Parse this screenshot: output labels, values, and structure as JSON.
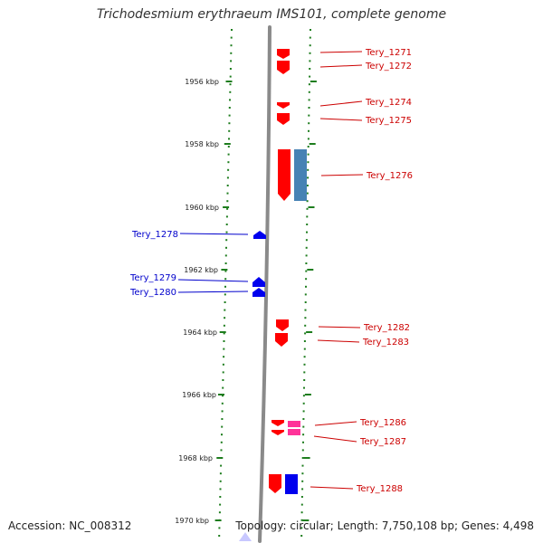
{
  "title": "Trichodesmium erythraeum IMS101, complete genome",
  "footer": {
    "accession": "Accession: NC_008312",
    "summary": "Topology: circular; Length: 7,750,108 bp; Genes: 4,498"
  },
  "colors": {
    "tick": "#1e7d1e",
    "backbone": "#8a8a8a",
    "forward_gene": "#ff0000",
    "reverse_gene": "#0000ee",
    "highlight_pink": "#ff3399",
    "steel_blue": "#4682b4",
    "pale_blue": "#c8c8ff",
    "forward_label": "#cc0000",
    "reverse_label": "#0000cc"
  },
  "scale_labels": [
    "1956 kbp",
    "1958 kbp",
    "1960 kbp",
    "1962 kbp",
    "1964 kbp",
    "1966 kbp",
    "1968 kbp",
    "1970 kbp"
  ],
  "gene_labels": [
    "Tery_1271",
    "Tery_1272",
    "Tery_1274",
    "Tery_1275",
    "Tery_1276",
    "Tery_1278",
    "Tery_1279",
    "Tery_1280",
    "Tery_1282",
    "Tery_1283",
    "Tery_1286",
    "Tery_1287",
    "Tery_1288"
  ]
}
